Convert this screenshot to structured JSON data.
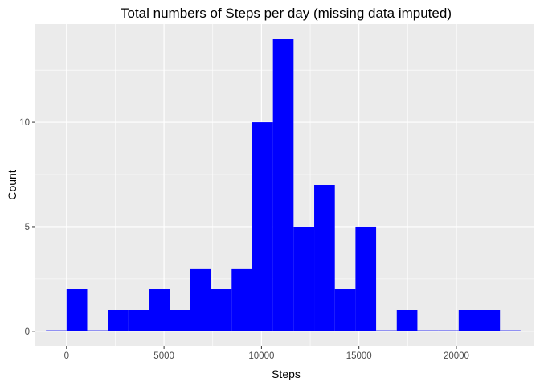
{
  "chart_data": {
    "type": "bar",
    "title": "Total numbers of Steps per day (missing data imputed)",
    "xlabel": "Steps",
    "ylabel": "Count",
    "xlim": [
      -1600,
      24000
    ],
    "ylim": [
      -0.7,
      14.7
    ],
    "x_ticks": [
      0,
      5000,
      10000,
      15000,
      20000
    ],
    "y_ticks": [
      0,
      5,
      10
    ],
    "bin_width": 1058.8,
    "bins": [
      {
        "x": -529.4,
        "count": 0
      },
      {
        "x": 529.4,
        "count": 2
      },
      {
        "x": 1588.2,
        "count": 0
      },
      {
        "x": 2647.0,
        "count": 1
      },
      {
        "x": 3705.8,
        "count": 1
      },
      {
        "x": 4764.6,
        "count": 2
      },
      {
        "x": 5823.4,
        "count": 1
      },
      {
        "x": 6882.2,
        "count": 3
      },
      {
        "x": 7941.0,
        "count": 2
      },
      {
        "x": 8999.8,
        "count": 3
      },
      {
        "x": 10058.6,
        "count": 10
      },
      {
        "x": 11117.4,
        "count": 14
      },
      {
        "x": 12176.2,
        "count": 5
      },
      {
        "x": 13235.0,
        "count": 7
      },
      {
        "x": 14293.8,
        "count": 2
      },
      {
        "x": 15352.6,
        "count": 5
      },
      {
        "x": 16411.4,
        "count": 0
      },
      {
        "x": 17470.2,
        "count": 1
      },
      {
        "x": 18529.0,
        "count": 0
      },
      {
        "x": 19587.8,
        "count": 0
      },
      {
        "x": 20646.6,
        "count": 1
      },
      {
        "x": 21705.4,
        "count": 1
      },
      {
        "x": 22764.2,
        "count": 0
      }
    ],
    "bar_color": "#0000ff",
    "panel_background": "#ebebeb",
    "grid": true,
    "grid_color": "#ffffff"
  }
}
